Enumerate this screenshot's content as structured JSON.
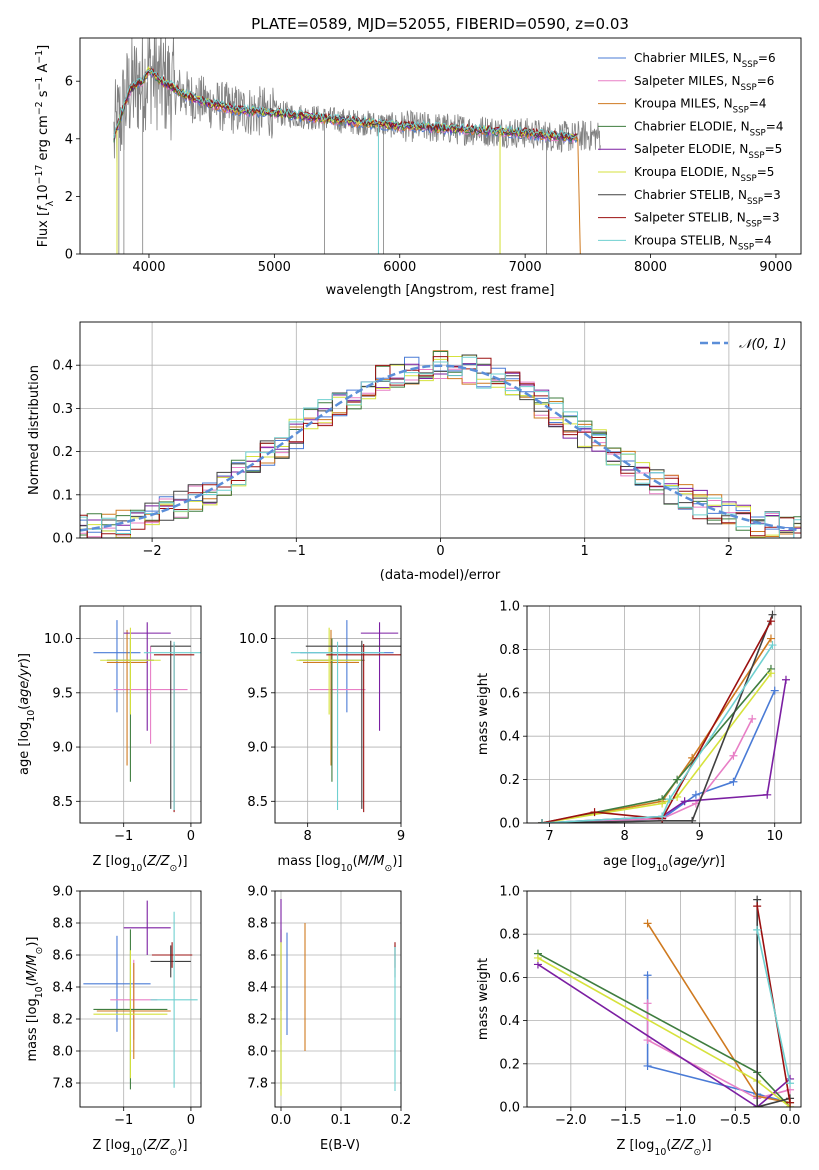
{
  "figure": {
    "title": "PLATE=0589, MJD=52055, FIBERID=0590, z=0.03"
  },
  "colors": {
    "Chabrier MILES": "#4a7bd6",
    "Salpeter MILES": "#e87fc6",
    "Kroupa MILES": "#cf7a20",
    "Chabrier ELODIE": "#3f7d3f",
    "Salpeter ELODIE": "#7b1fa2",
    "Kroupa ELODIE": "#d6e23c",
    "Chabrier STELIB": "#404040",
    "Salpeter STELIB": "#9b1010",
    "Kroupa STELIB": "#6fd0d0",
    "observed": "#808080",
    "normal": "#5b8ed8",
    "grid": "#b0b0b0"
  },
  "chart_data": [
    {
      "id": "spectrum",
      "type": "line",
      "title": "PLATE=0589, MJD=52055, FIBERID=0590, z=0.03",
      "xlabel": "wavelength [Angstrom, rest frame]",
      "ylabel": "Flux [f_λ 10^-17 erg cm^-2 s^-1 A^-1]",
      "xlim": [
        3450,
        9200
      ],
      "ylim": [
        0,
        7.5
      ],
      "xticks": [
        4000,
        5000,
        6000,
        7000,
        8000,
        9000
      ],
      "yticks": [
        0,
        2,
        4,
        6
      ],
      "grid": false,
      "legend_position": "top-right",
      "continuum": {
        "x": [
          3720,
          3760,
          3850,
          3950,
          4000,
          4100,
          4300,
          4500,
          4700,
          5000,
          5300,
          5600,
          6000,
          6400,
          6800,
          7000,
          7200,
          7420
        ],
        "y": [
          4.0,
          4.6,
          5.7,
          6.0,
          6.4,
          6.0,
          5.5,
          5.2,
          5.0,
          4.9,
          4.75,
          4.6,
          4.45,
          4.35,
          4.25,
          4.2,
          4.1,
          4.05
        ]
      },
      "observed_end": 7600,
      "models_end": 7420,
      "series": [
        {
          "name": "Chabrier MILES",
          "nssp": 6
        },
        {
          "name": "Salpeter MILES",
          "nssp": 6
        },
        {
          "name": "Kroupa MILES",
          "nssp": 4
        },
        {
          "name": "Chabrier ELODIE",
          "nssp": 4
        },
        {
          "name": "Salpeter ELODIE",
          "nssp": 5
        },
        {
          "name": "Kroupa ELODIE",
          "nssp": 5
        },
        {
          "name": "Chabrier STELIB",
          "nssp": 3
        },
        {
          "name": "Salpeter STELIB",
          "nssp": 3
        },
        {
          "name": "Kroupa STELIB",
          "nssp": 4
        }
      ]
    },
    {
      "id": "residuals",
      "type": "line",
      "xlabel": "(data-model)/error",
      "ylabel": "Normed distribution",
      "xlim": [
        -2.5,
        2.5
      ],
      "ylim": [
        0,
        0.5
      ],
      "xticks": [
        -2,
        -1,
        0,
        1,
        2
      ],
      "yticks": [
        0.0,
        0.1,
        0.2,
        0.3,
        0.4
      ],
      "grid": true,
      "legend": [
        "𝒩(0, 1)"
      ],
      "legend_position": "top-right",
      "bin_width": 0.1
    },
    {
      "id": "age_vs_Z",
      "type": "scatter",
      "xlabel": "Z [log10(Z/Z☉)]",
      "ylabel": "age [log10(age/yr)]",
      "xlim": [
        -1.65,
        0.15
      ],
      "ylim": [
        8.3,
        10.3
      ],
      "xticks": [
        -1,
        0
      ],
      "yticks": [
        8.5,
        9.0,
        9.5,
        10.0
      ],
      "grid": true,
      "points": [
        {
          "series": "Chabrier MILES",
          "x": -1.1,
          "y": 9.87,
          "xerr": 0.35,
          "yerr": [
            0.55,
            0.3
          ]
        },
        {
          "series": "Salpeter MILES",
          "x": -0.6,
          "y": 9.53,
          "xerr": 0.55,
          "yerr": [
            0.5,
            0.4
          ]
        },
        {
          "series": "Kroupa MILES",
          "x": -0.95,
          "y": 9.78,
          "xerr": 0.3,
          "yerr": [
            0.95,
            0.3
          ]
        },
        {
          "series": "Chabrier ELODIE",
          "x": -0.9,
          "y": 9.8,
          "xerr": 0.35,
          "yerr": [
            1.12,
            0.2
          ]
        },
        {
          "series": "Salpeter ELODIE",
          "x": -0.65,
          "y": 10.05,
          "xerr": 0.35,
          "yerr": [
            0.9,
            0.1
          ]
        },
        {
          "series": "Kroupa ELODIE",
          "x": -0.9,
          "y": 9.8,
          "xerr": 0.45,
          "yerr": [
            0.5,
            0.3
          ]
        },
        {
          "series": "Chabrier STELIB",
          "x": -0.3,
          "y": 9.93,
          "xerr": 0.3,
          "yerr": [
            1.5,
            0.05
          ]
        },
        {
          "series": "Salpeter STELIB",
          "x": -0.25,
          "y": 9.85,
          "xerr": 0.3,
          "yerr": [
            1.45,
            0.1
          ]
        },
        {
          "series": "Kroupa STELIB",
          "x": -0.25,
          "y": 9.87,
          "xerr": 0.45,
          "yerr": [
            1.45,
            0.1
          ]
        }
      ]
    },
    {
      "id": "age_vs_mass",
      "type": "scatter",
      "xlabel": "mass [log10(M/M☉)]",
      "ylabel": "",
      "xlim": [
        7.65,
        9.0
      ],
      "ylim": [
        8.3,
        10.3
      ],
      "xticks": [
        8,
        9
      ],
      "yticks": [
        8.5,
        9.0,
        9.5,
        10.0
      ],
      "grid": true,
      "points": [
        {
          "series": "Chabrier MILES",
          "x": 8.42,
          "y": 9.87,
          "xerr": 0.5,
          "yerr": [
            0.55,
            0.3
          ]
        },
        {
          "series": "Salpeter MILES",
          "x": 8.32,
          "y": 9.53,
          "xerr": 0.3,
          "yerr": [
            0.5,
            0.4
          ]
        },
        {
          "series": "Kroupa MILES",
          "x": 8.25,
          "y": 9.78,
          "xerr": 0.3,
          "yerr": [
            0.95,
            0.3
          ]
        },
        {
          "series": "Chabrier ELODIE",
          "x": 8.26,
          "y": 9.8,
          "xerr": 0.35,
          "yerr": [
            1.12,
            0.2
          ]
        },
        {
          "series": "Salpeter ELODIE",
          "x": 8.77,
          "y": 10.05,
          "xerr": 0.2,
          "yerr": [
            0.9,
            0.1
          ]
        },
        {
          "series": "Kroupa ELODIE",
          "x": 8.23,
          "y": 9.8,
          "xerr": 0.35,
          "yerr": [
            0.5,
            0.3
          ]
        },
        {
          "series": "Chabrier STELIB",
          "x": 8.58,
          "y": 9.93,
          "xerr": 0.6,
          "yerr": [
            1.5,
            0.05
          ]
        },
        {
          "series": "Salpeter STELIB",
          "x": 8.6,
          "y": 9.85,
          "xerr": 0.4,
          "yerr": [
            1.45,
            0.1
          ]
        },
        {
          "series": "Kroupa STELIB",
          "x": 8.32,
          "y": 9.87,
          "xerr": 0.5,
          "yerr": [
            1.45,
            0.1
          ]
        }
      ]
    },
    {
      "id": "mass_weight_vs_age",
      "type": "line",
      "xlabel": "age [log10(age/yr)]",
      "ylabel": "mass weight",
      "xlim": [
        6.7,
        10.35
      ],
      "ylim": [
        0,
        1.0
      ],
      "xticks": [
        7,
        8,
        9,
        10
      ],
      "yticks": [
        0.0,
        0.2,
        0.4,
        0.6,
        0.8,
        1.0
      ],
      "grid": true,
      "series": [
        {
          "name": "Chabrier MILES",
          "x": [
            6.9,
            8.5,
            8.95,
            9.45,
            10.0
          ],
          "y": [
            0.0,
            0.02,
            0.13,
            0.19,
            0.61
          ]
        },
        {
          "name": "Salpeter MILES",
          "x": [
            6.9,
            8.5,
            8.95,
            9.45,
            9.7
          ],
          "y": [
            0.0,
            0.02,
            0.09,
            0.31,
            0.48
          ]
        },
        {
          "name": "Kroupa MILES",
          "x": [
            6.9,
            8.5,
            8.9,
            9.95
          ],
          "y": [
            0.0,
            0.1,
            0.3,
            0.85
          ]
        },
        {
          "name": "Chabrier ELODIE",
          "x": [
            6.9,
            8.5,
            8.7,
            9.95
          ],
          "y": [
            0.0,
            0.11,
            0.2,
            0.71
          ]
        },
        {
          "name": "Salpeter ELODIE",
          "x": [
            6.9,
            8.5,
            8.8,
            9.9,
            10.15
          ],
          "y": [
            0.0,
            0.03,
            0.1,
            0.13,
            0.66
          ]
        },
        {
          "name": "Kroupa ELODIE",
          "x": [
            6.9,
            8.5,
            8.7,
            9.95
          ],
          "y": [
            0.0,
            0.09,
            0.12,
            0.69
          ]
        },
        {
          "name": "Chabrier STELIB",
          "x": [
            6.9,
            8.5,
            8.9,
            9.97
          ],
          "y": [
            0.0,
            0.01,
            0.01,
            0.96
          ]
        },
        {
          "name": "Salpeter STELIB",
          "x": [
            6.9,
            7.6,
            8.5,
            9.95
          ],
          "y": [
            0.0,
            0.05,
            0.02,
            0.93
          ]
        },
        {
          "name": "Kroupa STELIB",
          "x": [
            6.9,
            8.5,
            8.6,
            9.97
          ],
          "y": [
            0.0,
            0.03,
            0.11,
            0.82
          ]
        }
      ]
    },
    {
      "id": "mass_vs_Z",
      "type": "scatter",
      "xlabel": "Z [log10(Z/Z☉)]",
      "ylabel": "mass [log10(M/M☉)]",
      "xlim": [
        -1.65,
        0.15
      ],
      "ylim": [
        7.65,
        9.0
      ],
      "xticks": [
        -1,
        0
      ],
      "yticks": [
        7.8,
        8.0,
        8.2,
        8.4,
        8.6,
        8.8,
        9.0
      ],
      "grid": true,
      "points": [
        {
          "series": "Chabrier MILES",
          "x": -1.1,
          "y": 8.42,
          "xerr": 0.5,
          "yerr": 0.3
        },
        {
          "series": "Salpeter MILES",
          "x": -0.85,
          "y": 8.32,
          "xerr": 0.35,
          "yerr": 0.25
        },
        {
          "series": "Kroupa MILES",
          "x": -0.85,
          "y": 8.25,
          "xerr": 0.55,
          "yerr": 0.3
        },
        {
          "series": "Chabrier ELODIE",
          "x": -0.9,
          "y": 8.26,
          "xerr": 0.55,
          "yerr": 0.5
        },
        {
          "series": "Salpeter ELODIE",
          "x": -0.65,
          "y": 8.77,
          "xerr": 0.35,
          "yerr": 0.17
        },
        {
          "series": "Kroupa ELODIE",
          "x": -0.9,
          "y": 8.23,
          "xerr": 0.55,
          "yerr": 0.4
        },
        {
          "series": "Chabrier STELIB",
          "x": -0.3,
          "y": 8.56,
          "xerr": 0.3,
          "yerr": 0.1
        },
        {
          "series": "Salpeter STELIB",
          "x": -0.28,
          "y": 8.6,
          "xerr": 0.3,
          "yerr": 0.08
        },
        {
          "series": "Kroupa STELIB",
          "x": -0.25,
          "y": 8.32,
          "xerr": 0.35,
          "yerr": 0.55
        }
      ]
    },
    {
      "id": "mass_vs_EBV",
      "type": "scatter",
      "xlabel": "E(B-V)",
      "ylabel": "",
      "xlim": [
        -0.01,
        0.2
      ],
      "ylim": [
        7.65,
        9.0
      ],
      "xticks": [
        0.0,
        0.1,
        0.2
      ],
      "yticks": [
        7.8,
        8.0,
        8.2,
        8.4,
        8.6,
        8.8,
        9.0
      ],
      "grid": true,
      "points": [
        {
          "series": "Chabrier MILES",
          "x": 0.01,
          "y": 8.42,
          "yerr": 0.32
        },
        {
          "series": "Salpeter MILES",
          "x": 0.0,
          "y": 8.32,
          "yerr": 0.28
        },
        {
          "series": "Kroupa MILES",
          "x": 0.04,
          "y": 8.4,
          "yerr": 0.4
        },
        {
          "series": "Chabrier ELODIE",
          "x": 0.0,
          "y": 8.26,
          "yerr": 0.5
        },
        {
          "series": "Salpeter ELODIE",
          "x": 0.0,
          "y": 8.6,
          "yerr": 0.35
        },
        {
          "series": "Kroupa ELODIE",
          "x": 0.0,
          "y": 8.2,
          "yerr": 0.48
        },
        {
          "series": "Chabrier STELIB",
          "x": 0.19,
          "y": 8.56,
          "yerr": 0.1
        },
        {
          "series": "Salpeter STELIB",
          "x": 0.19,
          "y": 8.6,
          "yerr": 0.08
        },
        {
          "series": "Kroupa STELIB",
          "x": 0.19,
          "y": 8.2,
          "yerr": 0.45
        }
      ]
    },
    {
      "id": "mass_weight_vs_Z",
      "type": "line",
      "xlabel": "Z [log10(Z/Z☉)]",
      "ylabel": "mass weight",
      "xlim": [
        -2.4,
        0.1
      ],
      "ylim": [
        0,
        1.0
      ],
      "xticks": [
        -2.0,
        -1.5,
        -1.0,
        -0.5,
        0.0
      ],
      "yticks": [
        0.0,
        0.2,
        0.4,
        0.6,
        0.8,
        1.0
      ],
      "grid": true,
      "series": [
        {
          "name": "Chabrier MILES",
          "x": [
            -1.3,
            -1.3,
            -0.3,
            0.0
          ],
          "y": [
            0.61,
            0.19,
            0.06,
            0.02
          ]
        },
        {
          "name": "Salpeter MILES",
          "x": [
            -1.3,
            -1.3,
            -0.3,
            0.0
          ],
          "y": [
            0.48,
            0.31,
            0.04,
            0.08
          ]
        },
        {
          "name": "Kroupa MILES",
          "x": [
            -1.3,
            -0.3,
            0.0
          ],
          "y": [
            0.85,
            0.05,
            0.02
          ]
        },
        {
          "name": "Chabrier ELODIE",
          "x": [
            -2.3,
            -0.3,
            0.0
          ],
          "y": [
            0.71,
            0.16,
            0.0
          ]
        },
        {
          "name": "Salpeter ELODIE",
          "x": [
            -2.3,
            -0.3,
            0.0
          ],
          "y": [
            0.66,
            0.0,
            0.13
          ]
        },
        {
          "name": "Kroupa ELODIE",
          "x": [
            -2.3,
            -0.3,
            0.0
          ],
          "y": [
            0.69,
            0.12,
            0.0
          ]
        },
        {
          "name": "Chabrier STELIB",
          "x": [
            -0.3,
            -0.3,
            0.0
          ],
          "y": [
            0.96,
            0.0,
            0.04
          ]
        },
        {
          "name": "Salpeter STELIB",
          "x": [
            -0.3,
            0.0
          ],
          "y": [
            0.93,
            0.02
          ]
        },
        {
          "name": "Kroupa STELIB",
          "x": [
            -0.3,
            0.0
          ],
          "y": [
            0.82,
            0.11
          ]
        }
      ]
    }
  ]
}
